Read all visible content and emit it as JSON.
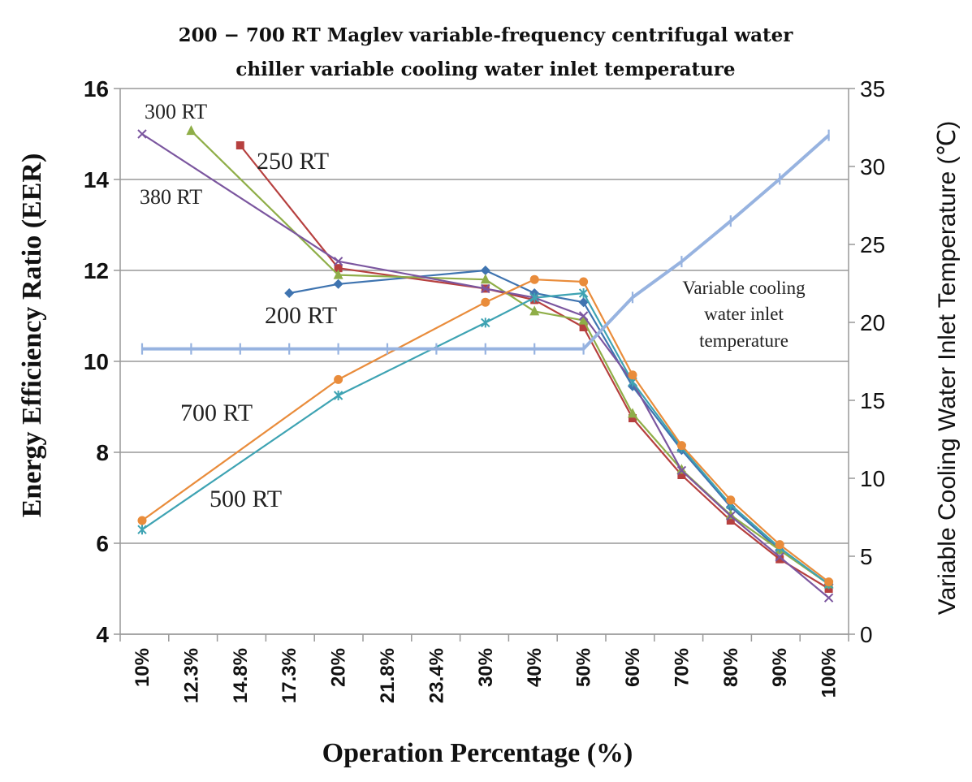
{
  "chart_data": {
    "type": "line",
    "title_lines": [
      "200 − 700 RT Maglev variable-frequency centrifugal water",
      "chiller variable cooling water inlet temperature"
    ],
    "xlabel": "Operation Percentage (%)",
    "ylabel": "Energy Efficiency Ratio (EER)",
    "y2label": "Variable Cooling Water Inlet Temperature (℃)",
    "categories": [
      "10%",
      "12.3%",
      "14.8%",
      "17.3%",
      "20%",
      "21.8%",
      "23.4%",
      "30%",
      "40%",
      "50%",
      "60%",
      "70%",
      "80%",
      "90%",
      "100%"
    ],
    "ylim": [
      4,
      16
    ],
    "yticks": [
      "4",
      "6",
      "8",
      "10",
      "12",
      "14",
      "16"
    ],
    "y2lim": [
      0,
      35
    ],
    "y2ticks": [
      "0",
      "5",
      "10",
      "15",
      "20",
      "25",
      "30",
      "35"
    ],
    "grid": true,
    "series": [
      {
        "name": "200 RT",
        "label": "200 RT",
        "color": "#3f74b0",
        "marker": "diamond",
        "axis": "left",
        "values": [
          null,
          null,
          null,
          11.5,
          11.7,
          null,
          null,
          12.0,
          11.5,
          11.3,
          9.45,
          8.05,
          6.8,
          5.85,
          5.1
        ]
      },
      {
        "name": "250 RT",
        "label": "250 RT",
        "color": "#b6403f",
        "marker": "square",
        "axis": "left",
        "values": [
          null,
          null,
          14.75,
          null,
          12.05,
          null,
          null,
          11.6,
          11.35,
          10.75,
          8.75,
          7.5,
          6.5,
          5.65,
          5.0
        ]
      },
      {
        "name": "300 RT",
        "label": "300 RT",
        "color": "#8fae48",
        "marker": "triangle",
        "axis": "left",
        "values": [
          null,
          15.07,
          null,
          null,
          11.9,
          null,
          null,
          11.8,
          11.1,
          10.9,
          8.85,
          7.62,
          6.62,
          5.85,
          5.1
        ]
      },
      {
        "name": "380 RT",
        "label": "380 RT",
        "color": "#7b569f",
        "marker": "x",
        "axis": "left",
        "values": [
          15.0,
          null,
          null,
          null,
          12.2,
          null,
          null,
          11.6,
          11.4,
          11.0,
          9.55,
          7.6,
          6.6,
          5.7,
          4.8
        ]
      },
      {
        "name": "500 RT",
        "label": "500 RT",
        "color": "#3ea3b3",
        "marker": "star",
        "axis": "left",
        "values": [
          6.3,
          null,
          null,
          null,
          9.25,
          null,
          null,
          10.85,
          11.4,
          11.5,
          9.55,
          8.1,
          6.85,
          5.9,
          5.1
        ]
      },
      {
        "name": "700 RT",
        "label": "700 RT",
        "color": "#e98c3b",
        "marker": "circle",
        "axis": "left",
        "values": [
          6.5,
          null,
          null,
          null,
          9.6,
          null,
          null,
          11.3,
          11.8,
          11.75,
          9.7,
          8.15,
          6.95,
          5.97,
          5.15
        ]
      },
      {
        "name": "Variable cooling water inlet temperature",
        "color": "#97b3e0",
        "marker": "plus",
        "axis": "right",
        "values": [
          18.3,
          18.3,
          18.3,
          18.3,
          18.3,
          18.3,
          18.3,
          18.3,
          18.3,
          18.3,
          21.6,
          23.9,
          26.5,
          29.2,
          32.0
        ]
      }
    ],
    "annotations": {
      "label_300": "300 RT",
      "label_250": "250 RT",
      "label_380": "380 RT",
      "label_200": "200 RT",
      "label_700": "700 RT",
      "label_500": "500 RT",
      "temp_line1": "Variable cooling",
      "temp_line2": "water inlet",
      "temp_line3": "temperature"
    }
  }
}
